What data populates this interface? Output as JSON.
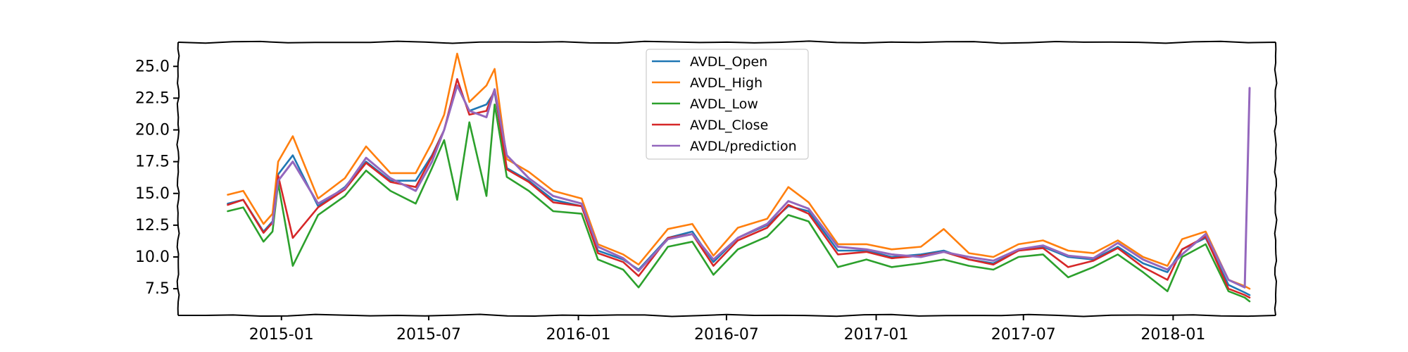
{
  "chart_data": {
    "type": "line",
    "title": "",
    "xlabel": "",
    "ylabel": "",
    "xlim": [
      "2014-08-27",
      "2018-05-07"
    ],
    "ylim": [
      5.4,
      26.9
    ],
    "grid": false,
    "legend_position": "top-center",
    "x_ticks": [
      "2015-01",
      "2015-07",
      "2016-01",
      "2016-07",
      "2017-01",
      "2017-07",
      "2018-01"
    ],
    "y_ticks": [
      "7.5",
      "10.0",
      "12.5",
      "15.0",
      "17.5",
      "20.0",
      "22.5",
      "25.0"
    ],
    "x": [
      "2014-10-27",
      "2014-11-15",
      "2014-12-10",
      "2014-12-21",
      "2014-12-28",
      "2015-01-15",
      "2015-02-15",
      "2015-03-20",
      "2015-04-15",
      "2015-05-15",
      "2015-06-15",
      "2015-07-05",
      "2015-07-20",
      "2015-08-05",
      "2015-08-20",
      "2015-09-10",
      "2015-09-20",
      "2015-10-05",
      "2015-11-01",
      "2015-12-01",
      "2016-01-05",
      "2016-01-25",
      "2016-02-25",
      "2016-03-15",
      "2016-04-20",
      "2016-05-20",
      "2016-06-15",
      "2016-07-15",
      "2016-08-20",
      "2016-09-15",
      "2016-10-10",
      "2016-11-15",
      "2016-12-20",
      "2017-01-20",
      "2017-02-25",
      "2017-03-25",
      "2017-04-25",
      "2017-05-25",
      "2017-06-25",
      "2017-07-25",
      "2017-08-25",
      "2017-09-25",
      "2017-10-25",
      "2017-11-25",
      "2017-12-25",
      "2018-01-12",
      "2018-02-10",
      "2018-03-10",
      "2018-03-30",
      "2018-04-05"
    ],
    "series": [
      {
        "name": "AVDL_Open",
        "color": "#1f77b4",
        "values": [
          14.2,
          14.5,
          12.0,
          12.8,
          16.5,
          18.0,
          14.0,
          15.5,
          17.5,
          16.0,
          16.0,
          18.0,
          20.0,
          23.5,
          21.5,
          22.0,
          23.0,
          17.0,
          16.0,
          14.5,
          14.0,
          10.5,
          9.8,
          9.0,
          11.5,
          12.0,
          9.6,
          11.5,
          12.5,
          14.0,
          13.6,
          10.5,
          10.5,
          10.0,
          10.2,
          10.5,
          9.8,
          9.5,
          10.5,
          10.8,
          10.0,
          9.8,
          10.8,
          9.5,
          8.8,
          10.6,
          11.5,
          7.8,
          7.2,
          7.0
        ]
      },
      {
        "name": "AVDL_High",
        "color": "#ff7f0e",
        "values": [
          14.9,
          15.2,
          12.6,
          13.4,
          17.5,
          19.5,
          14.6,
          16.2,
          18.7,
          16.6,
          16.6,
          19.0,
          21.2,
          26.0,
          22.2,
          23.5,
          24.8,
          17.7,
          16.7,
          15.2,
          14.6,
          11.0,
          10.2,
          9.4,
          12.2,
          12.6,
          10.1,
          12.3,
          13.0,
          15.5,
          14.3,
          11.0,
          11.0,
          10.6,
          10.8,
          12.2,
          10.3,
          10.0,
          11.0,
          11.3,
          10.5,
          10.3,
          11.3,
          10.0,
          9.3,
          11.4,
          12.0,
          8.2,
          7.7,
          7.5
        ]
      },
      {
        "name": "AVDL_Low",
        "color": "#2ca02c",
        "values": [
          13.6,
          13.9,
          11.2,
          12.0,
          15.8,
          9.3,
          13.3,
          14.8,
          16.8,
          15.2,
          14.2,
          17.0,
          19.2,
          14.5,
          20.6,
          14.8,
          22.0,
          16.3,
          15.2,
          13.6,
          13.4,
          9.8,
          9.0,
          7.6,
          10.8,
          11.2,
          8.6,
          10.6,
          11.6,
          13.3,
          12.8,
          9.2,
          9.8,
          9.2,
          9.5,
          9.8,
          9.3,
          9.0,
          10.0,
          10.2,
          8.4,
          9.2,
          10.2,
          8.8,
          7.3,
          10.0,
          11.0,
          7.3,
          6.8,
          6.5
        ]
      },
      {
        "name": "AVDL_Close",
        "color": "#d62728",
        "values": [
          14.1,
          14.5,
          11.9,
          12.7,
          16.4,
          11.5,
          13.9,
          15.3,
          17.4,
          15.9,
          15.5,
          17.9,
          20.0,
          24.0,
          21.2,
          21.5,
          23.2,
          16.9,
          15.9,
          14.3,
          14.0,
          10.3,
          9.6,
          8.5,
          11.5,
          11.8,
          9.3,
          11.3,
          12.3,
          14.1,
          13.4,
          10.2,
          10.4,
          9.9,
          10.1,
          10.4,
          9.8,
          9.4,
          10.5,
          10.7,
          9.2,
          9.7,
          10.7,
          9.2,
          8.2,
          10.6,
          11.6,
          7.5,
          7.0,
          6.8
        ]
      },
      {
        "name": "AVDL/prediction",
        "color": "#9467bd",
        "values": [
          null,
          null,
          null,
          12.6,
          16.0,
          17.5,
          14.2,
          15.4,
          17.8,
          16.2,
          15.2,
          17.5,
          20.0,
          23.5,
          21.5,
          21.0,
          23.2,
          18.0,
          16.2,
          14.8,
          14.2,
          10.8,
          9.9,
          8.9,
          11.4,
          11.8,
          9.8,
          11.5,
          12.6,
          14.4,
          13.8,
          10.8,
          10.6,
          10.2,
          10.0,
          10.4,
          10.0,
          9.7,
          10.6,
          10.9,
          10.1,
          9.9,
          11.1,
          9.8,
          9.0,
          10.2,
          11.8,
          8.2,
          7.6,
          23.3
        ]
      }
    ]
  }
}
